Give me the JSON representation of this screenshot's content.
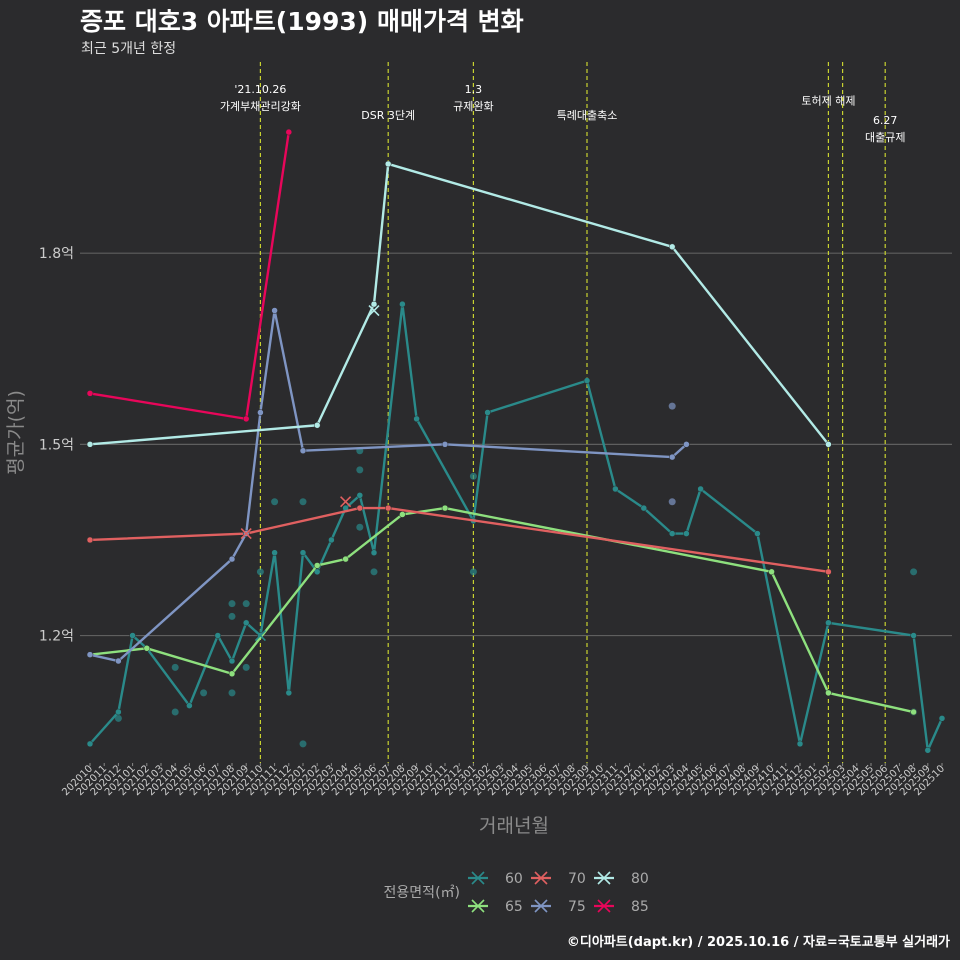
{
  "header": {
    "title": "증포 대호3 아파트(1993) 매매가격 변화",
    "subtitle": "최근 5개년 한정"
  },
  "footer": {
    "credit": "©디아파트(dapt.kr) / 2025.10.16 / 자료=국토교통부 실거래가"
  },
  "chart_data": {
    "type": "line",
    "title": "증포 대호3 아파트(1993) 매매가격 변화",
    "subtitle": "최근 5개년 한정",
    "xlabel": "거래년월",
    "ylabel": "평균가(억)",
    "ylim": [
      1.0,
      2.1
    ],
    "y_ticks": [
      {
        "value": 1.2,
        "label": "1.2억"
      },
      {
        "value": 1.5,
        "label": "1.5억"
      },
      {
        "value": 1.8,
        "label": "1.8억"
      }
    ],
    "grid": "horizontal",
    "legend_title": "전용면적(㎡)",
    "legend_position": "bottom",
    "categories": [
      "202010",
      "202011",
      "202012",
      "202101",
      "202102",
      "202103",
      "202104",
      "202105",
      "202106",
      "202107",
      "202108",
      "202109",
      "202110",
      "202111",
      "202112",
      "202201",
      "202202",
      "202203",
      "202204",
      "202205",
      "202206",
      "202207",
      "202208",
      "202209",
      "202210",
      "202211",
      "202212",
      "202301",
      "202302",
      "202303",
      "202304",
      "202305",
      "202306",
      "202307",
      "202308",
      "202309",
      "202310",
      "202311",
      "202312",
      "202401",
      "202402",
      "202403",
      "202404",
      "202405",
      "202406",
      "202407",
      "202408",
      "202409",
      "202410",
      "202411",
      "202412",
      "202501",
      "202502",
      "202503",
      "202504",
      "202505",
      "202506",
      "202507",
      "202508",
      "202509",
      "202510"
    ],
    "events": [
      {
        "x": "202110",
        "label": "'21.10.26\n가계부채관리강화",
        "level": 0
      },
      {
        "x": "202207",
        "label": "DSR 3단계",
        "level": 1
      },
      {
        "x": "202301",
        "label": "1.3\n규제완화",
        "level": 0
      },
      {
        "x": "202309",
        "label": "특례대출축소",
        "level": 1
      },
      {
        "x": "202502",
        "label": "토허제 해제",
        "level": 0.45
      },
      {
        "x": "202503",
        "label": "",
        "level": 0
      },
      {
        "x": "202506",
        "label": "6.27\n대출규제",
        "level": 1.2
      }
    ],
    "series": [
      {
        "name": "60",
        "color": "#2a8a8a",
        "x": [
          "202010",
          "202012",
          "202101",
          "202102",
          "202105",
          "202107",
          "202108",
          "202109",
          "202110",
          "202111",
          "202112",
          "202201",
          "202202",
          "202203",
          "202204",
          "202205",
          "202206",
          "202208",
          "202209",
          "202301",
          "202302",
          "202309",
          "202311",
          "202401",
          "202403",
          "202404",
          "202405",
          "202409",
          "202412",
          "202502",
          "202508",
          "202509",
          "202510"
        ],
        "values": [
          1.03,
          1.08,
          1.2,
          1.18,
          1.09,
          1.2,
          1.16,
          1.22,
          1.2,
          1.33,
          1.11,
          1.33,
          1.3,
          1.35,
          1.4,
          1.42,
          1.33,
          1.72,
          1.54,
          1.38,
          1.55,
          1.6,
          1.43,
          1.4,
          1.36,
          1.36,
          1.43,
          1.36,
          1.03,
          1.22,
          1.2,
          1.02,
          1.07
        ]
      },
      {
        "name": "65",
        "color": "#8ee07e",
        "x": [
          "202010",
          "202102",
          "202108",
          "202202",
          "202204",
          "202208",
          "202211",
          "202410",
          "202502",
          "202508"
        ],
        "values": [
          1.17,
          1.18,
          1.14,
          1.31,
          1.32,
          1.39,
          1.4,
          1.3,
          1.11,
          1.08
        ]
      },
      {
        "name": "70",
        "color": "#e06060",
        "x": [
          "202010",
          "202109",
          "202205",
          "202207",
          "202502"
        ],
        "values": [
          1.35,
          1.36,
          1.4,
          1.4,
          1.3
        ]
      },
      {
        "name": "75",
        "color": "#7f95c3",
        "x": [
          "202010",
          "202012",
          "202108",
          "202109",
          "202110",
          "202111",
          "202201",
          "202211",
          "202403",
          "202404"
        ],
        "values": [
          1.17,
          1.16,
          1.32,
          1.36,
          1.55,
          1.71,
          1.49,
          1.5,
          1.48,
          1.5
        ]
      },
      {
        "name": "80",
        "color": "#b2eae6",
        "x": [
          "202010",
          "202202",
          "202206",
          "202207",
          "202403",
          "202502"
        ],
        "values": [
          1.5,
          1.53,
          1.72,
          1.94,
          1.81,
          1.5
        ]
      },
      {
        "name": "85",
        "color": "#e8065a",
        "x": [
          "202010",
          "202109",
          "202112"
        ],
        "values": [
          1.58,
          1.54,
          1.99
        ]
      }
    ],
    "points": [
      {
        "x": "202012",
        "y": 1.07,
        "series": "60"
      },
      {
        "x": "202104",
        "y": 1.15,
        "series": "60"
      },
      {
        "x": "202104",
        "y": 1.08,
        "series": "60"
      },
      {
        "x": "202106",
        "y": 1.11,
        "series": "60"
      },
      {
        "x": "202108",
        "y": 1.25,
        "series": "60"
      },
      {
        "x": "202108",
        "y": 1.23,
        "series": "60"
      },
      {
        "x": "202108",
        "y": 1.11,
        "series": "60"
      },
      {
        "x": "202109",
        "y": 1.15,
        "series": "60"
      },
      {
        "x": "202109",
        "y": 1.25,
        "series": "60"
      },
      {
        "x": "202110",
        "y": 1.3,
        "series": "60"
      },
      {
        "x": "202111",
        "y": 1.41,
        "series": "60"
      },
      {
        "x": "202201",
        "y": 1.41,
        "series": "60"
      },
      {
        "x": "202201",
        "y": 1.03,
        "series": "60"
      },
      {
        "x": "202205",
        "y": 1.37,
        "series": "60"
      },
      {
        "x": "202205",
        "y": 1.46,
        "series": "60"
      },
      {
        "x": "202205",
        "y": 1.49,
        "series": "60"
      },
      {
        "x": "202206",
        "y": 1.3,
        "series": "60"
      },
      {
        "x": "202301",
        "y": 1.3,
        "series": "60"
      },
      {
        "x": "202301",
        "y": 1.45,
        "series": "60"
      },
      {
        "x": "202508",
        "y": 1.3,
        "series": "60"
      },
      {
        "x": "202508",
        "y": 1.08,
        "series": "60"
      },
      {
        "x": "202403",
        "y": 1.56,
        "series": "75"
      },
      {
        "x": "202403",
        "y": 1.41,
        "series": "75"
      }
    ]
  }
}
